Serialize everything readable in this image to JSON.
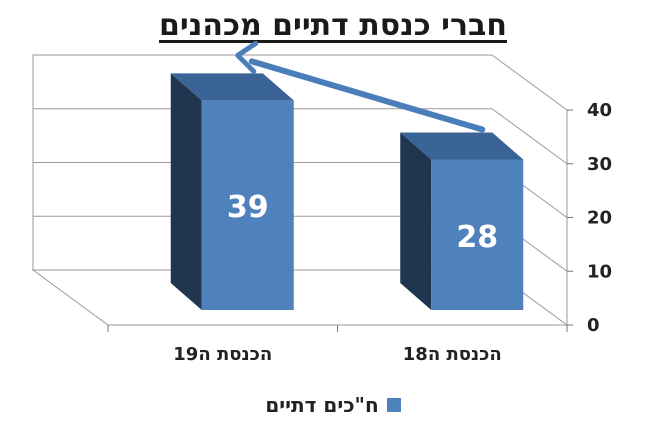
{
  "chart_data": {
    "type": "bar",
    "title": "חברי כנסת דתיים מכהנים",
    "categories": [
      "הכנסת ה19",
      "הכנסת ה18"
    ],
    "series": [
      {
        "name": "ח\"כים דתיים",
        "values": [
          39,
          28
        ],
        "color": "#4f81bd"
      }
    ],
    "ylim": [
      0,
      40
    ],
    "yticks": [
      0,
      10,
      20,
      30,
      40
    ],
    "y_axis_side": "right",
    "grid": true,
    "legend_position": "bottom",
    "annotation": "arrow from הכנסת ה18 bar up to הכנסת ה19 bar"
  }
}
